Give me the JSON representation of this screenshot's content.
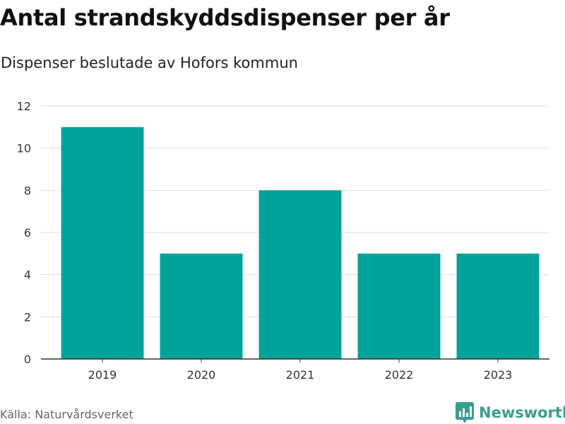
{
  "title": "Antal strandskyddsdispenser per år",
  "subtitle": "Dispenser beslutade av Hofors kommun",
  "source": "Källa: Naturvårdsverket",
  "brand": {
    "name": "Newsworthy",
    "color": "#3a9d8f",
    "icon": "newsworthy-logo-icon"
  },
  "colors": {
    "bar": "#00a39a",
    "grid": "#dddddd",
    "axis": "#333333"
  },
  "chart_data": {
    "type": "bar",
    "categories": [
      "2019",
      "2020",
      "2021",
      "2022",
      "2023"
    ],
    "values": [
      11,
      5,
      8,
      5,
      5
    ],
    "yticks": [
      "0",
      "2",
      "4",
      "6",
      "8",
      "10",
      "12"
    ],
    "ylim": [
      0,
      12
    ],
    "title": "Antal strandskyddsdispenser per år",
    "subtitle": "Dispenser beslutade av Hofors kommun",
    "xlabel": "",
    "ylabel": "",
    "grid": true,
    "legend": "none"
  }
}
